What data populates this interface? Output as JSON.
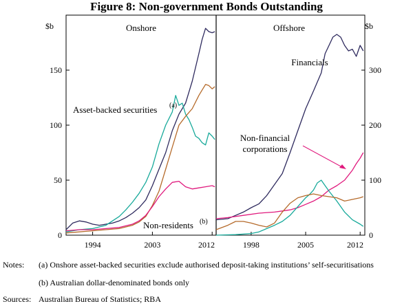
{
  "title": "Figure 8: Non-government Bonds Outstanding",
  "notes_label": "Notes:",
  "notes": [
    "(a) Onshore asset-backed securities exclude authorised deposit-taking institutions’ self-securitisations",
    "(b) Australian dollar-denominated bonds only"
  ],
  "sources_label": "Sources:",
  "sources": "Australian Bureau of Statistics; RBA",
  "colors": {
    "financials": "#2e2a5e",
    "abs": "#17a99a",
    "nonres": "#b56a2a",
    "nonfin": "#e0197d",
    "axis": "#000000"
  },
  "chart_data": [
    {
      "type": "line",
      "panel": "Onshore",
      "title": "Onshore",
      "ylabel": "$b",
      "ylim": [
        0,
        200
      ],
      "yticks": [
        0,
        50,
        100,
        150
      ],
      "xlim": [
        1990,
        2012.6
      ],
      "xticks": [
        1994,
        2003,
        2012
      ],
      "xtick_labels": [
        "1994",
        "2003",
        "2012"
      ],
      "series": [
        {
          "key": "financials",
          "name": "Financials",
          "x": [
            1990,
            1991,
            1992,
            1993,
            1994,
            1995,
            1996,
            1997,
            1998,
            1999,
            2000,
            2001,
            2002,
            2003,
            2004,
            2005,
            2006,
            2007,
            2008,
            2009,
            2010,
            2010.5,
            2011,
            2011.5,
            2012,
            2012.4
          ],
          "values": [
            5,
            11,
            13,
            12,
            10,
            9,
            10,
            11,
            13,
            16,
            20,
            25,
            32,
            45,
            60,
            75,
            95,
            110,
            120,
            140,
            165,
            178,
            188,
            185,
            184,
            185
          ]
        },
        {
          "key": "abs",
          "name": "Asset-backed securities",
          "x": [
            1990,
            1992,
            1994,
            1996,
            1997,
            1998,
            1999,
            2000,
            2001,
            2002,
            2003,
            2004,
            2005,
            2006,
            2006.5,
            2007,
            2007.5,
            2008,
            2008.5,
            2009,
            2009.5,
            2010,
            2010.5,
            2011,
            2011.5,
            2012,
            2012.4
          ],
          "values": [
            3,
            5,
            6,
            9,
            13,
            17,
            23,
            30,
            38,
            48,
            62,
            83,
            100,
            112,
            127,
            118,
            120,
            110,
            105,
            98,
            90,
            88,
            84,
            82,
            93,
            90,
            87
          ]
        },
        {
          "key": "nonres",
          "name": "Non-residents",
          "x": [
            1990,
            1992,
            1994,
            1996,
            1998,
            2000,
            2001,
            2002,
            2003,
            2004,
            2005,
            2006,
            2007,
            2008,
            2009,
            2010,
            2010.5,
            2011,
            2011.5,
            2012,
            2012.4
          ],
          "values": [
            2,
            3,
            4,
            5,
            6,
            9,
            12,
            17,
            27,
            40,
            60,
            80,
            100,
            108,
            115,
            127,
            132,
            137,
            136,
            133,
            135
          ]
        },
        {
          "key": "nonfin",
          "name": "Non-financial corporations",
          "x": [
            1990,
            1992,
            1994,
            1996,
            1998,
            2000,
            2001,
            2002,
            2003,
            2004,
            2005,
            2006,
            2007,
            2008,
            2009,
            2010,
            2011,
            2012,
            2012.4
          ],
          "values": [
            4,
            5,
            5,
            6,
            7,
            10,
            13,
            18,
            26,
            35,
            42,
            48,
            49,
            44,
            42,
            43,
            44,
            45,
            44
          ]
        }
      ]
    },
    {
      "type": "line",
      "panel": "Offshore",
      "title": "Offshore",
      "ylabel": "$b",
      "ylim": [
        0,
        400
      ],
      "yticks": [
        0,
        100,
        200,
        300
      ],
      "xlim": [
        1993.5,
        2012.6
      ],
      "xticks": [
        1998,
        2005,
        2012
      ],
      "xtick_labels": [
        "1998",
        "2005",
        "2012"
      ],
      "series": [
        {
          "key": "financials",
          "name": "Financials",
          "x": [
            1993.5,
            1995,
            1996,
            1997,
            1998,
            1999,
            2000,
            2001,
            2002,
            2003,
            2004,
            2005,
            2006,
            2007,
            2007.5,
            2008,
            2008.5,
            2009,
            2009.5,
            2010,
            2010.5,
            2011,
            2011.5,
            2012,
            2012.4
          ],
          "values": [
            28,
            30,
            36,
            42,
            50,
            57,
            72,
            92,
            112,
            150,
            190,
            230,
            262,
            295,
            330,
            345,
            360,
            365,
            360,
            345,
            335,
            338,
            325,
            345,
            335
          ]
        },
        {
          "key": "nonfin",
          "name": "Non-financial corporations",
          "x": [
            1993.5,
            1995,
            1997,
            1999,
            2001,
            2002,
            2003,
            2004,
            2005,
            2006,
            2007,
            2008,
            2009,
            2010,
            2011,
            2011.5,
            2012,
            2012.4
          ],
          "values": [
            30,
            32,
            36,
            40,
            42,
            44,
            46,
            50,
            56,
            62,
            70,
            82,
            90,
            100,
            118,
            130,
            140,
            150
          ]
        },
        {
          "key": "abs",
          "name": "Asset-backed securities",
          "x": [
            1993.5,
            1996,
            1998,
            1999,
            2000,
            2001,
            2002,
            2003,
            2004,
            2005,
            2005.5,
            2006,
            2006.5,
            2007,
            2007.5,
            2008,
            2009,
            2010,
            2011,
            2012,
            2012.4
          ],
          "values": [
            0,
            1,
            3,
            6,
            12,
            18,
            25,
            36,
            52,
            68,
            74,
            82,
            95,
            100,
            90,
            80,
            62,
            42,
            28,
            20,
            16
          ]
        },
        {
          "key": "nonres",
          "name": "Non-residents",
          "x": [
            1993.5,
            1995,
            1996,
            1997,
            1998,
            1999,
            2000,
            2001,
            2002,
            2003,
            2004,
            2005,
            2006,
            2007,
            2008,
            2009,
            2010,
            2011,
            2012,
            2012.4
          ],
          "values": [
            10,
            18,
            25,
            25,
            22,
            18,
            15,
            22,
            42,
            58,
            68,
            72,
            75,
            72,
            70,
            68,
            62,
            65,
            68,
            70
          ]
        }
      ]
    }
  ],
  "labels": {
    "financials": "Financials",
    "abs": "Asset-backed securities",
    "abs_sup": "(a)",
    "nonres": "Non-residents",
    "nonres_sup": "(b)",
    "nonfin_line1": "Non-financial",
    "nonfin_line2": "corporations"
  }
}
